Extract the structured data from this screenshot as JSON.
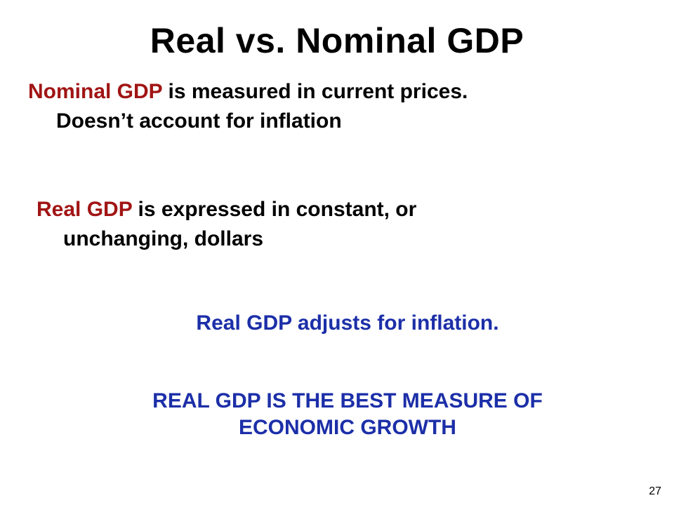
{
  "slide": {
    "title": "Real vs. Nominal GDP",
    "paragraph1": {
      "term": "Nominal GDP",
      "text_rest": " is measured in current prices.",
      "line2": "Doesn’t account for inflation"
    },
    "paragraph2": {
      "term": "Real GDP",
      "text_rest": " is expressed in constant, or",
      "line2": "unchanging, dollars"
    },
    "statement": "Real GDP adjusts for inflation.",
    "conclusion_line1": "REAL GDP IS THE BEST MEASURE OF",
    "conclusion_line2": "ECONOMIC GROWTH",
    "page_number": "27"
  },
  "colors": {
    "term_highlight": "#a11414",
    "blue_text": "#1c2fa8",
    "body_text": "#000000",
    "background": "#ffffff"
  }
}
